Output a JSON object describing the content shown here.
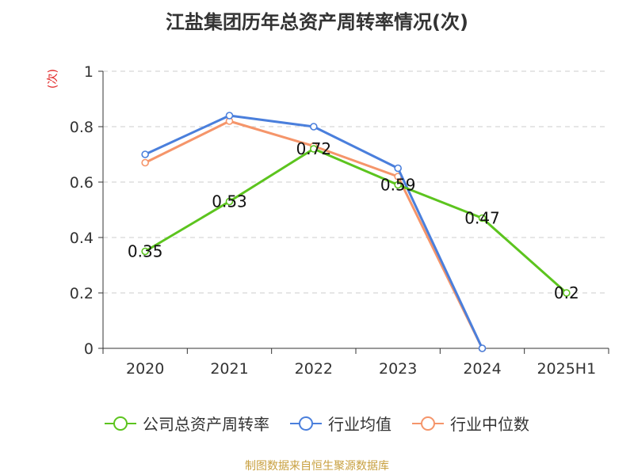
{
  "title": "江盐集团历年总资产周转率情况(次)",
  "unit_label": "(次)",
  "source": "制图数据来自恒生聚源数据库",
  "chart_data": {
    "type": "line",
    "title": "江盐集团历年总资产周转率情况(次)",
    "xlabel": "",
    "ylabel": "(次)",
    "categories": [
      "2020",
      "2021",
      "2022",
      "2023",
      "2024",
      "2025H1"
    ],
    "ylim": [
      0,
      1
    ],
    "yticks": [
      "0",
      "0.2",
      "0.4",
      "0.6",
      "0.8",
      "1"
    ],
    "grid": true,
    "legend_position": "bottom",
    "series": [
      {
        "name": "公司总资产周转率",
        "color": "#5cc41e",
        "values": [
          0.35,
          0.53,
          0.72,
          0.59,
          0.47,
          0.2
        ],
        "labels": [
          "0.35",
          "0.53",
          "0.72",
          "0.59",
          "0.47",
          "0.2"
        ]
      },
      {
        "name": "行业均值",
        "color": "#4a7fdc",
        "values": [
          0.7,
          0.84,
          0.8,
          0.65,
          0,
          null
        ]
      },
      {
        "name": "行业中位数",
        "color": "#f5956a",
        "values": [
          0.67,
          0.82,
          0.73,
          0.62,
          0,
          null
        ]
      }
    ]
  }
}
